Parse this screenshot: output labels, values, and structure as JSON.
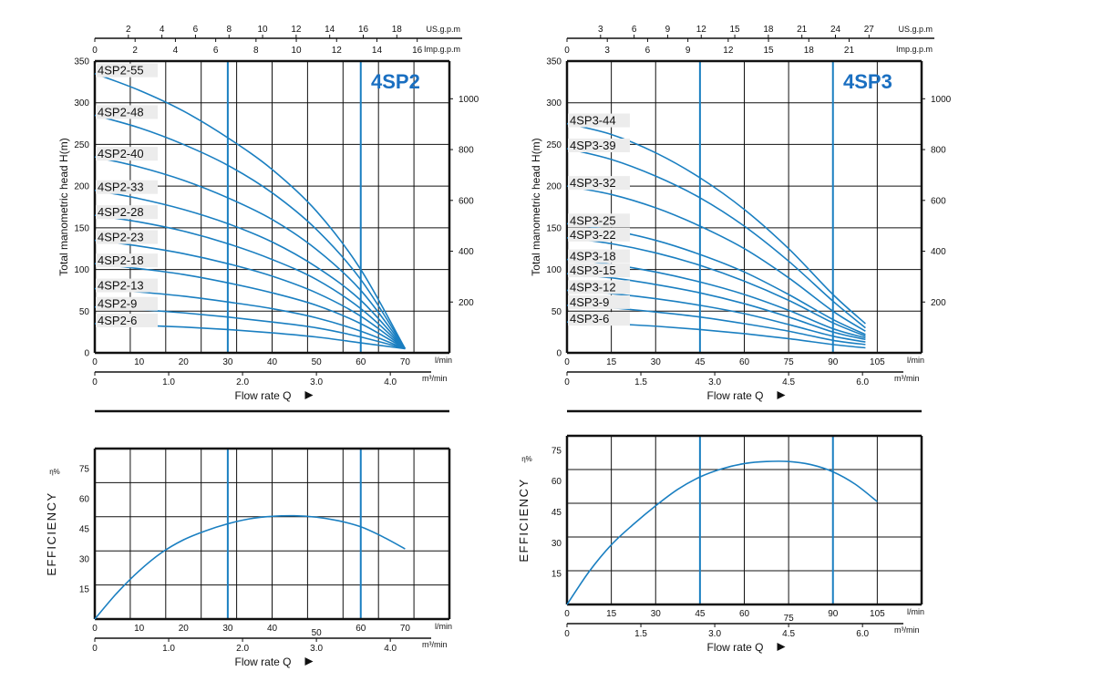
{
  "colors": {
    "curve": "#1a7fc1",
    "grid": "#111111",
    "title": "#1a6fc1",
    "label_bg": "#ececec"
  },
  "chart_data": [
    {
      "type": "line",
      "id": "4sp2-head",
      "title": "4SP2",
      "ylabel": "Total manometric head H(m)",
      "xlabel": "Flow rate Q",
      "xlim": [
        0,
        80
      ],
      "ylim": [
        0,
        350
      ],
      "x_ticks": [
        0,
        10,
        20,
        30,
        40,
        50,
        60,
        70
      ],
      "x_unit": "l/min",
      "y_ticks": [
        0,
        50,
        100,
        150,
        200,
        250,
        300,
        350
      ],
      "secondary_x": {
        "m3min": {
          "unit": "m³/min",
          "ticks": [
            {
              "v": 0,
              "label": "0"
            },
            {
              "v": 1.0,
              "label": "1.0"
            },
            {
              "v": 2.0,
              "label": "2.0"
            },
            {
              "v": 3.0,
              "label": "3.0"
            },
            {
              "v": 4.0,
              "label": "4.0"
            }
          ]
        },
        "usgpm": {
          "unit": "US.g.p.m",
          "ticks": [
            {
              "v": 2,
              "label": "2"
            },
            {
              "v": 4,
              "label": "4"
            },
            {
              "v": 6,
              "label": "6"
            },
            {
              "v": 8,
              "label": "8"
            },
            {
              "v": 10,
              "label": "10"
            },
            {
              "v": 12,
              "label": "12"
            },
            {
              "v": 14,
              "label": "14"
            },
            {
              "v": 16,
              "label": "16"
            },
            {
              "v": 18,
              "label": "18"
            }
          ]
        },
        "impgpm": {
          "unit": "Imp.g.p.m",
          "ticks": [
            {
              "v": 0,
              "label": "0"
            },
            {
              "v": 2,
              "label": "2"
            },
            {
              "v": 4,
              "label": "4"
            },
            {
              "v": 6,
              "label": "6"
            },
            {
              "v": 8,
              "label": "8"
            },
            {
              "v": 10,
              "label": "10"
            },
            {
              "v": 12,
              "label": "12"
            },
            {
              "v": 14,
              "label": "14"
            },
            {
              "v": 16,
              "label": "16"
            }
          ]
        }
      },
      "secondary_y": {
        "ticks": [
          200,
          400,
          600,
          800,
          1000
        ]
      },
      "highlight_x": [
        30,
        60
      ],
      "series": [
        {
          "name": "4SP2-55",
          "x": [
            0,
            10,
            20,
            30,
            40,
            50,
            60,
            70
          ],
          "y": [
            335,
            315,
            290,
            258,
            220,
            170,
            100,
            5
          ]
        },
        {
          "name": "4SP2-48",
          "x": [
            0,
            10,
            20,
            30,
            40,
            50,
            60,
            70
          ],
          "y": [
            285,
            270,
            250,
            225,
            192,
            148,
            88,
            5
          ]
        },
        {
          "name": "4SP2-40",
          "x": [
            0,
            10,
            20,
            30,
            40,
            50,
            60,
            70
          ],
          "y": [
            235,
            223,
            207,
            186,
            160,
            124,
            75,
            5
          ]
        },
        {
          "name": "4SP2-33",
          "x": [
            0,
            10,
            20,
            30,
            40,
            50,
            60,
            70
          ],
          "y": [
            195,
            185,
            172,
            155,
            133,
            103,
            63,
            5
          ]
        },
        {
          "name": "4SP2-28",
          "x": [
            0,
            10,
            20,
            30,
            40,
            50,
            60,
            70
          ],
          "y": [
            165,
            157,
            146,
            131,
            112,
            88,
            53,
            5
          ]
        },
        {
          "name": "4SP2-23",
          "x": [
            0,
            10,
            20,
            30,
            40,
            50,
            60,
            70
          ],
          "y": [
            135,
            128,
            119,
            107,
            92,
            72,
            44,
            5
          ]
        },
        {
          "name": "4SP2-18",
          "x": [
            0,
            10,
            20,
            30,
            40,
            50,
            60,
            70
          ],
          "y": [
            107,
            101,
            94,
            84,
            72,
            57,
            35,
            5
          ]
        },
        {
          "name": "4SP2-13",
          "x": [
            0,
            10,
            20,
            30,
            40,
            50,
            60,
            70
          ],
          "y": [
            77,
            73,
            68,
            61,
            53,
            42,
            26,
            5
          ]
        },
        {
          "name": "4SP2-9",
          "x": [
            0,
            10,
            20,
            30,
            40,
            50,
            60,
            70
          ],
          "y": [
            55,
            52,
            48,
            43,
            37,
            30,
            19,
            5
          ]
        },
        {
          "name": "4SP2-6",
          "x": [
            0,
            10,
            20,
            30,
            40,
            50,
            60,
            70
          ],
          "y": [
            35,
            33,
            31,
            28,
            24,
            19,
            12,
            5
          ]
        }
      ]
    },
    {
      "type": "line",
      "id": "4sp3-head",
      "title": "4SP3",
      "ylabel": "Total manometric head H(m)",
      "xlabel": "Flow rate Q",
      "xlim": [
        0,
        120
      ],
      "ylim": [
        0,
        350
      ],
      "x_ticks": [
        0,
        15,
        30,
        45,
        60,
        75,
        90,
        105
      ],
      "x_unit": "l/min",
      "y_ticks": [
        0,
        50,
        100,
        150,
        200,
        250,
        300,
        350
      ],
      "secondary_x": {
        "m3min": {
          "unit": "m³/min",
          "ticks": [
            {
              "v": 0,
              "label": "0"
            },
            {
              "v": 1.5,
              "label": "1.5"
            },
            {
              "v": 3.0,
              "label": "3.0"
            },
            {
              "v": 4.5,
              "label": "4.5"
            },
            {
              "v": 6.0,
              "label": "6.0"
            }
          ]
        },
        "usgpm": {
          "unit": "US.g.p.m",
          "ticks": [
            {
              "v": 3,
              "label": "3"
            },
            {
              "v": 6,
              "label": "6"
            },
            {
              "v": 9,
              "label": "9"
            },
            {
              "v": 12,
              "label": "12"
            },
            {
              "v": 15,
              "label": "15"
            },
            {
              "v": 18,
              "label": "18"
            },
            {
              "v": 21,
              "label": "21"
            },
            {
              "v": 24,
              "label": "24"
            },
            {
              "v": 27,
              "label": "27"
            }
          ]
        },
        "impgpm": {
          "unit": "Imp.g.p.m",
          "ticks": [
            {
              "v": 0,
              "label": "0"
            },
            {
              "v": 3,
              "label": "3"
            },
            {
              "v": 6,
              "label": "6"
            },
            {
              "v": 9,
              "label": "9"
            },
            {
              "v": 12,
              "label": "12"
            },
            {
              "v": 15,
              "label": "15"
            },
            {
              "v": 18,
              "label": "18"
            },
            {
              "v": 21,
              "label": "21"
            }
          ]
        }
      },
      "secondary_y": {
        "ticks": [
          200,
          400,
          600,
          800,
          1000
        ]
      },
      "highlight_x": [
        45,
        90
      ],
      "series": [
        {
          "name": "4SP3-44",
          "x": [
            0,
            15,
            30,
            45,
            60,
            75,
            90,
            101
          ],
          "y": [
            275,
            262,
            240,
            210,
            172,
            125,
            70,
            35
          ]
        },
        {
          "name": "4SP3-39",
          "x": [
            0,
            15,
            30,
            45,
            60,
            75,
            90,
            101
          ],
          "y": [
            245,
            232,
            212,
            186,
            152,
            110,
            62,
            30
          ]
        },
        {
          "name": "4SP3-32",
          "x": [
            0,
            15,
            30,
            45,
            60,
            75,
            90,
            101
          ],
          "y": [
            200,
            190,
            174,
            152,
            125,
            90,
            50,
            26
          ]
        },
        {
          "name": "4SP3-25",
          "x": [
            0,
            15,
            30,
            45,
            60,
            75,
            90,
            101
          ],
          "y": [
            155,
            147,
            135,
            118,
            97,
            70,
            40,
            22
          ]
        },
        {
          "name": "4SP3-22",
          "x": [
            0,
            15,
            30,
            45,
            60,
            75,
            90,
            101
          ],
          "y": [
            138,
            131,
            120,
            105,
            86,
            63,
            36,
            20
          ]
        },
        {
          "name": "4SP3-18",
          "x": [
            0,
            15,
            30,
            45,
            60,
            75,
            90,
            101
          ],
          "y": [
            112,
            106,
            97,
            85,
            70,
            51,
            29,
            18
          ]
        },
        {
          "name": "4SP3-15",
          "x": [
            0,
            15,
            30,
            45,
            60,
            75,
            90,
            101
          ],
          "y": [
            95,
            90,
            82,
            72,
            59,
            43,
            25,
            16
          ]
        },
        {
          "name": "4SP3-12",
          "x": [
            0,
            15,
            30,
            45,
            60,
            75,
            90,
            101
          ],
          "y": [
            75,
            71,
            65,
            57,
            47,
            34,
            20,
            13
          ]
        },
        {
          "name": "4SP3-9",
          "x": [
            0,
            15,
            30,
            45,
            60,
            75,
            90,
            101
          ],
          "y": [
            57,
            54,
            49,
            43,
            35,
            26,
            15,
            10
          ]
        },
        {
          "name": "4SP3-6",
          "x": [
            0,
            15,
            30,
            45,
            60,
            75,
            90,
            101
          ],
          "y": [
            37,
            35,
            32,
            28,
            23,
            17,
            10,
            6
          ]
        }
      ]
    },
    {
      "type": "line",
      "id": "4sp2-efficiency",
      "ylabel": "EFFICIENCY",
      "y_unit": "η%",
      "xlabel": "Flow rate Q",
      "xlim": [
        0,
        80
      ],
      "ylim": [
        0,
        85
      ],
      "x_ticks": [
        {
          "v": 0,
          "label": "0"
        },
        {
          "v": 10,
          "label": "10"
        },
        {
          "v": 20,
          "label": "20"
        },
        {
          "v": 30,
          "label": "30"
        },
        {
          "v": 40,
          "label": "40"
        },
        {
          "v": 50,
          "label": "50",
          "offset": true
        },
        {
          "v": 60,
          "label": "60"
        },
        {
          "v": 70,
          "label": "70"
        }
      ],
      "x_unit": "l/min",
      "y_ticks": [
        15,
        30,
        45,
        60,
        75
      ],
      "secondary_x": {
        "m3min": {
          "unit": "m³/min",
          "ticks": [
            {
              "v": 0,
              "label": "0"
            },
            {
              "v": 1.0,
              "label": "1.0"
            },
            {
              "v": 2.0,
              "label": "2.0"
            },
            {
              "v": 3.0,
              "label": "3.0"
            },
            {
              "v": 4.0,
              "label": "4.0"
            }
          ]
        }
      },
      "highlight_x": [
        30,
        60
      ],
      "series": [
        {
          "name": "",
          "x": [
            0,
            5,
            10,
            15,
            20,
            25,
            30,
            35,
            40,
            45,
            50,
            55,
            60,
            65,
            70
          ],
          "y": [
            0,
            13,
            24,
            33,
            39.5,
            44,
            47.5,
            50,
            51.2,
            51.5,
            50.8,
            49,
            46,
            41,
            35
          ]
        }
      ]
    },
    {
      "type": "line",
      "id": "4sp3-efficiency",
      "ylabel": "EFFICIENCY",
      "y_unit": "η%",
      "xlabel": "Flow rate Q",
      "xlim": [
        0,
        120
      ],
      "ylim": [
        0,
        82
      ],
      "x_ticks": [
        {
          "v": 0,
          "label": "0"
        },
        {
          "v": 15,
          "label": "15"
        },
        {
          "v": 30,
          "label": "30"
        },
        {
          "v": 45,
          "label": "45"
        },
        {
          "v": 60,
          "label": "60"
        },
        {
          "v": 75,
          "label": "75",
          "offset": true
        },
        {
          "v": 90,
          "label": "90"
        },
        {
          "v": 105,
          "label": "105"
        }
      ],
      "x_unit": "l/min",
      "y_ticks": [
        15,
        30,
        45,
        60,
        75
      ],
      "secondary_x": {
        "m3min": {
          "unit": "m³/min",
          "ticks": [
            {
              "v": 0,
              "label": "0"
            },
            {
              "v": 1.5,
              "label": "1.5"
            },
            {
              "v": 3.0,
              "label": "3.0"
            },
            {
              "v": 4.5,
              "label": "4.5"
            },
            {
              "v": 6.0,
              "label": "6.0"
            }
          ]
        }
      },
      "highlight_x": [
        45,
        90
      ],
      "series": [
        {
          "name": "",
          "x": [
            0,
            7.5,
            15,
            22.5,
            30,
            37.5,
            45,
            52.5,
            60,
            67.5,
            75,
            82.5,
            90,
            97.5,
            105
          ],
          "y": [
            0,
            16,
            29,
            39,
            48,
            56,
            62,
            66,
            68.5,
            69.5,
            69.5,
            68,
            64.5,
            58.5,
            50
          ]
        }
      ]
    }
  ]
}
